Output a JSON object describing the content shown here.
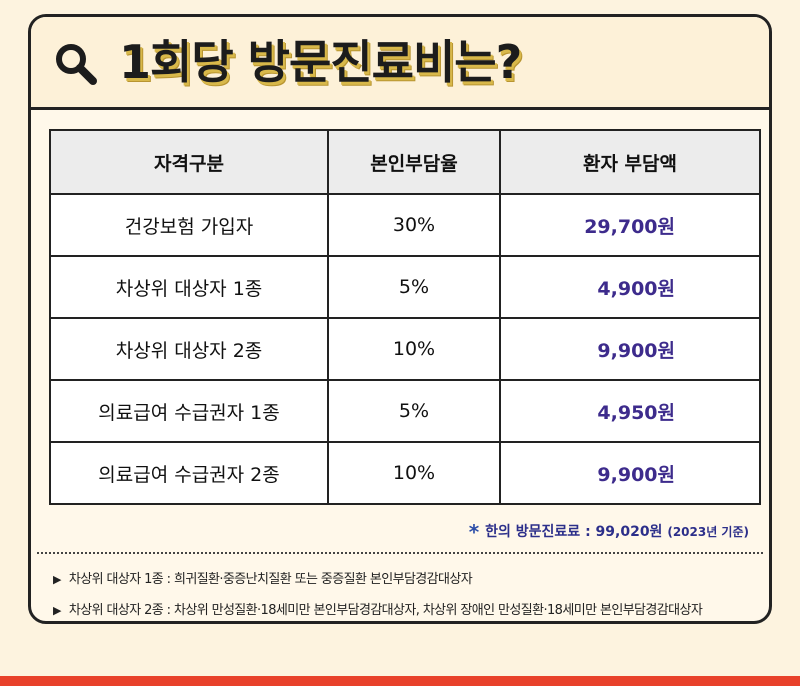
{
  "title": "1회당 방문진료비는?",
  "icons": {
    "search": "search-icon",
    "note": "asterisk-icon",
    "bullet": "triangle-right-icon"
  },
  "colors": {
    "amount_text": "#3d2b8c",
    "title_shadow": "#d8b84a",
    "bottom_bar": "#e8412a"
  },
  "table": {
    "headers": [
      "자격구분",
      "본인부담율",
      "환자 부담액"
    ],
    "rows": [
      {
        "category": "건강보험 가입자",
        "rate": "30%",
        "amount": "29,700원"
      },
      {
        "category": "차상위 대상자 1종",
        "rate": "5%",
        "amount": "4,900원"
      },
      {
        "category": "차상위 대상자 2종",
        "rate": "10%",
        "amount": "9,900원"
      },
      {
        "category": "의료급여 수급권자 1종",
        "rate": "5%",
        "amount": "4,950원"
      },
      {
        "category": "의료급여 수급권자 2종",
        "rate": "10%",
        "amount": "9,900원"
      }
    ]
  },
  "note": {
    "star": "*",
    "text": "한의 방문진료료 : 99,020원",
    "year": "(2023년 기준)"
  },
  "footnotes": [
    {
      "bullet": "▶",
      "text": "차상위 대상자 1종 : 희귀질환·중증난치질환 또는 중증질환 본인부담경감대상자"
    },
    {
      "bullet": "▶",
      "text": "차상위 대상자 2종 : 차상위 만성질환·18세미만 본인부담경감대상자, 차상위 장애인 만성질환·18세미만 본인부담경감대상자"
    }
  ]
}
